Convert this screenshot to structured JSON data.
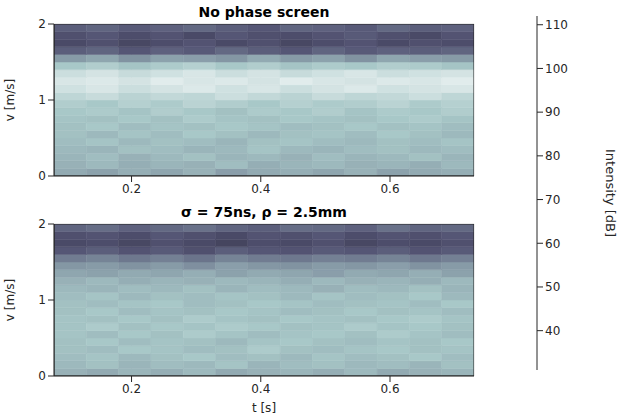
{
  "chart_data": [
    {
      "type": "heatmap",
      "title": "No phase screen",
      "y_label": "v [m/s]",
      "x_edges": [
        0.08,
        0.13,
        0.18,
        0.23,
        0.28,
        0.33,
        0.38,
        0.43,
        0.48,
        0.53,
        0.58,
        0.63,
        0.68,
        0.73
      ],
      "y_edges": [
        0,
        0.1,
        0.2,
        0.3,
        0.4,
        0.5,
        0.6,
        0.7,
        0.8,
        0.9,
        1,
        1.1,
        1.2,
        1.3,
        1.4,
        1.5,
        1.6,
        1.7,
        1.8,
        1.9,
        2
      ],
      "cells": [
        [
          84,
          82,
          85,
          83,
          86,
          81,
          84,
          85,
          83,
          86,
          82,
          84,
          85
        ],
        [
          86,
          88,
          85,
          87,
          86,
          89,
          85,
          87,
          88,
          86,
          87,
          85,
          88
        ],
        [
          87,
          89,
          86,
          88,
          90,
          87,
          88,
          86,
          89,
          87,
          88,
          90,
          87
        ],
        [
          88,
          87,
          90,
          89,
          87,
          88,
          91,
          88,
          87,
          89,
          90,
          88,
          89
        ],
        [
          89,
          91,
          88,
          90,
          89,
          87,
          90,
          91,
          89,
          88,
          90,
          89,
          91
        ],
        [
          90,
          88,
          91,
          89,
          92,
          90,
          88,
          90,
          91,
          89,
          92,
          90,
          88
        ],
        [
          90,
          92,
          89,
          91,
          90,
          92,
          91,
          89,
          90,
          92,
          90,
          91,
          89
        ],
        [
          91,
          90,
          92,
          90,
          93,
          91,
          90,
          92,
          91,
          90,
          92,
          93,
          91
        ],
        [
          92,
          93,
          91,
          94,
          92,
          90,
          93,
          92,
          94,
          91,
          93,
          92,
          94
        ],
        [
          94,
          92,
          95,
          93,
          96,
          94,
          92,
          95,
          93,
          94,
          96,
          93,
          95
        ],
        [
          97,
          99,
          96,
          98,
          97,
          100,
          98,
          96,
          99,
          97,
          98,
          100,
          97
        ],
        [
          101,
          103,
          100,
          102,
          104,
          101,
          103,
          100,
          102,
          104,
          101,
          102,
          103
        ],
        [
          103,
          104,
          102,
          105,
          103,
          104,
          102,
          105,
          103,
          102,
          104,
          103,
          105
        ],
        [
          100,
          102,
          99,
          101,
          103,
          100,
          102,
          99,
          101,
          103,
          100,
          101,
          102
        ],
        [
          92,
          94,
          91,
          93,
          95,
          92,
          94,
          91,
          93,
          92,
          94,
          93,
          91
        ],
        [
          80,
          83,
          78,
          82,
          81,
          79,
          84,
          80,
          82,
          78,
          83,
          81,
          80
        ],
        [
          64,
          66,
          62,
          65,
          63,
          67,
          64,
          62,
          66,
          63,
          65,
          64,
          66
        ],
        [
          58,
          60,
          57,
          59,
          61,
          58,
          60,
          57,
          59,
          61,
          58,
          60,
          59
        ],
        [
          60,
          62,
          59,
          61,
          58,
          62,
          60,
          59,
          61,
          63,
          60,
          58,
          61
        ],
        [
          64,
          66,
          63,
          65,
          67,
          64,
          62,
          66,
          65,
          63,
          67,
          64,
          65
        ]
      ],
      "xlim": [
        0.08,
        0.73
      ],
      "ylim": [
        0,
        2
      ],
      "xticks": [
        0.2,
        0.4,
        0.6
      ],
      "yticks": [
        0,
        1,
        2
      ],
      "grid": true
    },
    {
      "type": "heatmap",
      "title": "σ = 75ns, ρ = 2.5mm",
      "x_label": "t [s]",
      "y_label": "v [m/s]",
      "x_edges": [
        0.08,
        0.13,
        0.18,
        0.23,
        0.28,
        0.33,
        0.38,
        0.43,
        0.48,
        0.53,
        0.58,
        0.63,
        0.68,
        0.73
      ],
      "y_edges": [
        0,
        0.1,
        0.2,
        0.3,
        0.4,
        0.5,
        0.6,
        0.7,
        0.8,
        0.9,
        1,
        1.1,
        1.2,
        1.3,
        1.4,
        1.5,
        1.6,
        1.7,
        1.8,
        1.9,
        2
      ],
      "cells": [
        [
          86,
          84,
          87,
          85,
          88,
          84,
          86,
          87,
          85,
          88,
          84,
          86,
          87
        ],
        [
          88,
          90,
          87,
          89,
          88,
          91,
          87,
          89,
          90,
          88,
          89,
          87,
          90
        ],
        [
          89,
          91,
          88,
          90,
          92,
          89,
          90,
          88,
          91,
          89,
          90,
          92,
          89
        ],
        [
          90,
          89,
          92,
          91,
          89,
          90,
          93,
          90,
          89,
          91,
          92,
          90,
          91
        ],
        [
          90,
          92,
          89,
          91,
          90,
          88,
          91,
          92,
          90,
          89,
          91,
          90,
          92
        ],
        [
          91,
          89,
          92,
          90,
          93,
          91,
          89,
          91,
          92,
          90,
          93,
          91,
          89
        ],
        [
          91,
          93,
          90,
          92,
          91,
          93,
          92,
          90,
          91,
          93,
          91,
          92,
          90
        ],
        [
          91,
          90,
          92,
          90,
          93,
          91,
          90,
          92,
          91,
          90,
          92,
          93,
          91
        ],
        [
          90,
          92,
          89,
          91,
          90,
          92,
          91,
          89,
          90,
          92,
          90,
          91,
          89
        ],
        [
          90,
          89,
          91,
          92,
          89,
          90,
          92,
          91,
          89,
          90,
          91,
          89,
          92
        ],
        [
          89,
          91,
          88,
          90,
          89,
          91,
          90,
          88,
          91,
          89,
          90,
          92,
          88
        ],
        [
          88,
          87,
          89,
          88,
          90,
          87,
          89,
          88,
          86,
          89,
          88,
          90,
          87
        ],
        [
          86,
          88,
          85,
          87,
          86,
          88,
          87,
          85,
          88,
          86,
          87,
          85,
          88
        ],
        [
          83,
          82,
          84,
          83,
          85,
          82,
          84,
          83,
          81,
          84,
          83,
          85,
          82
        ],
        [
          79,
          80,
          78,
          80,
          77,
          81,
          79,
          78,
          80,
          79,
          81,
          78,
          80
        ],
        [
          72,
          74,
          71,
          73,
          70,
          74,
          72,
          71,
          73,
          72,
          74,
          71,
          73
        ],
        [
          62,
          64,
          61,
          63,
          60,
          64,
          62,
          61,
          63,
          62,
          64,
          61,
          63
        ],
        [
          58,
          59,
          57,
          60,
          58,
          56,
          59,
          58,
          60,
          57,
          59,
          58,
          60
        ],
        [
          60,
          61,
          59,
          62,
          60,
          58,
          61,
          60,
          62,
          59,
          61,
          60,
          62
        ],
        [
          66,
          68,
          65,
          67,
          69,
          66,
          64,
          68,
          67,
          65,
          69,
          66,
          67
        ]
      ],
      "xlim": [
        0.08,
        0.73
      ],
      "ylim": [
        0,
        2
      ],
      "xticks": [
        0.2,
        0.4,
        0.6
      ],
      "yticks": [
        0,
        1,
        2
      ],
      "grid": true
    }
  ],
  "colorbar": {
    "label": "Intensity [dB]",
    "range": [
      31,
      112
    ],
    "ticks": [
      40,
      50,
      60,
      70,
      80,
      90,
      100,
      110
    ]
  }
}
